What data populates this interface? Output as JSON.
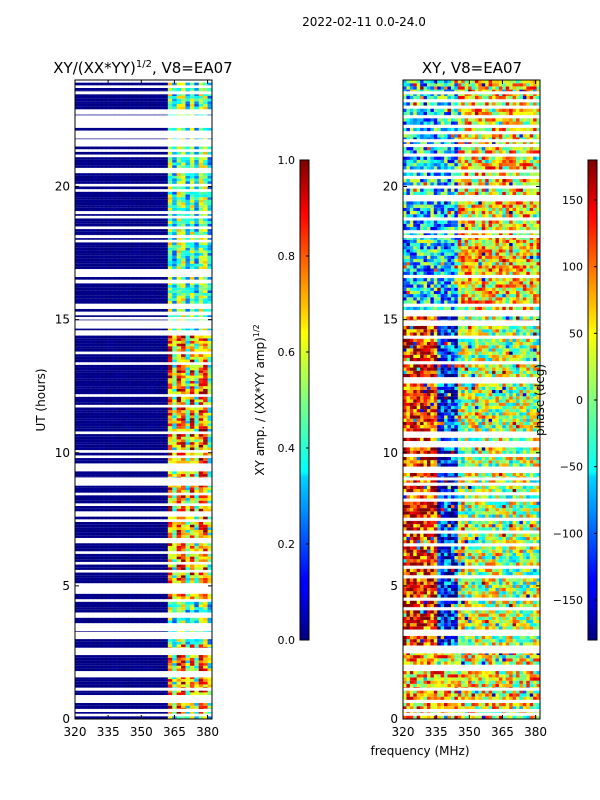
{
  "suptitle": "2022-02-11 0.0-24.0",
  "fig_xlabel": "frequency (MHz)",
  "chart_data": [
    {
      "type": "heatmap",
      "title_main": "XY/(XX*YY)",
      "title_sup": "1/2",
      "title_tail": ", V8=EA07",
      "xlabel": "",
      "ylabel": "UT (hours)",
      "xlim": [
        320,
        382
      ],
      "ylim": [
        0,
        24
      ],
      "x_ticks": [
        320,
        335,
        350,
        365,
        380
      ],
      "y_ticks": [
        0,
        5,
        10,
        15,
        20
      ],
      "colorbar": {
        "label_main": "XY amp. / (XX*YY amp)",
        "label_sup": "1/2",
        "range": [
          0.0,
          1.0
        ],
        "ticks": [
          "0.0",
          "0.2",
          "0.4",
          "0.6",
          "0.8",
          "1.0"
        ],
        "tick_values": [
          0,
          0.2,
          0.4,
          0.6,
          0.8,
          1.0
        ]
      },
      "bright_channels_mhz": [
        363,
        368,
        373,
        378
      ],
      "flagged_ut_hours": [
        0.3,
        1.1,
        1.6,
        2.5,
        2.6,
        3.2,
        8.8,
        9.0,
        14.7,
        14.8,
        14.9,
        15.2,
        16.4,
        18.1,
        19.0,
        21.7,
        22.6,
        23.5
      ]
    },
    {
      "type": "heatmap",
      "title_main": "XY, V8=EA07",
      "xlabel": "frequency (MHz)",
      "ylabel": "",
      "xlim": [
        320,
        382
      ],
      "ylim": [
        0,
        24
      ],
      "x_ticks": [
        320,
        335,
        350,
        365,
        380
      ],
      "y_ticks": [
        0,
        5,
        10,
        15,
        20
      ],
      "colorbar": {
        "label_main": "phase (deg)",
        "range": [
          -180,
          180
        ],
        "ticks": [
          "−150",
          "−100",
          "−50",
          "0",
          "50",
          "100",
          "150"
        ],
        "tick_values": [
          -150,
          -100,
          -50,
          0,
          50,
          100,
          150
        ]
      },
      "flagged_ut_hours": [
        0.3,
        1.1,
        2.5,
        2.6,
        8.8,
        9.0,
        14.8,
        14.9,
        15.2,
        18.1,
        21.7,
        23.5
      ]
    }
  ]
}
